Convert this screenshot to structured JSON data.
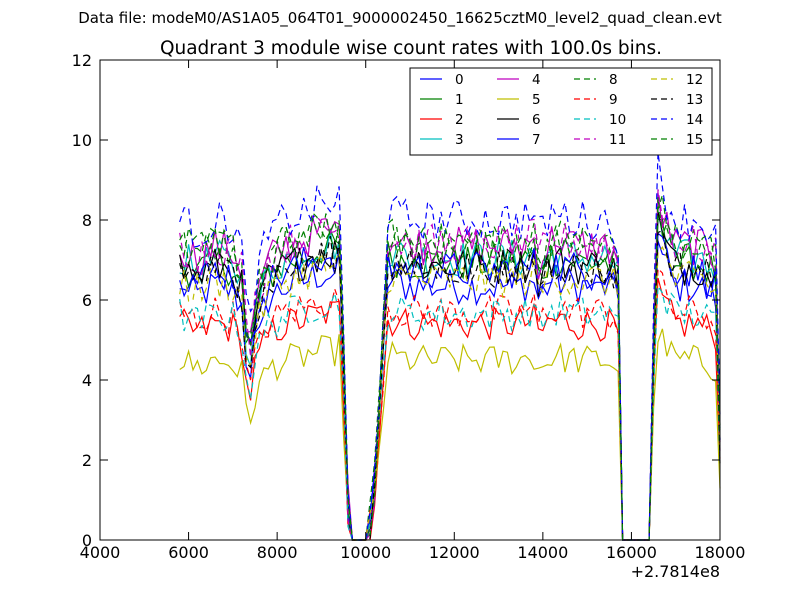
{
  "figure": {
    "suptitle": "Data file: modeM0/AS1A05_064T01_9000002450_16625cztM0_level2_quad_clean.evt"
  },
  "chart_data": {
    "type": "line",
    "title": "Quadrant 3 module wise count rates with 100.0s bins.",
    "xlabel": "",
    "ylabel": "",
    "x_offset_label": "+2.7814e8",
    "xlim": [
      4000,
      18000
    ],
    "ylim": [
      0,
      12
    ],
    "xticks": [
      "4000",
      "6000",
      "8000",
      "10000",
      "12000",
      "14000",
      "16000",
      "18000"
    ],
    "yticks": [
      "0",
      "2",
      "4",
      "6",
      "8",
      "10",
      "12"
    ],
    "grid": false,
    "legend_position": "top-right",
    "legend_columns": 4,
    "series": [
      {
        "name": "0",
        "color": "#0000ff",
        "dash": "solid"
      },
      {
        "name": "1",
        "color": "#008000",
        "dash": "solid"
      },
      {
        "name": "2",
        "color": "#ff0000",
        "dash": "solid"
      },
      {
        "name": "3",
        "color": "#00bfbf",
        "dash": "solid"
      },
      {
        "name": "4",
        "color": "#bf00bf",
        "dash": "solid"
      },
      {
        "name": "5",
        "color": "#bfbf00",
        "dash": "solid"
      },
      {
        "name": "6",
        "color": "#000000",
        "dash": "solid"
      },
      {
        "name": "7",
        "color": "#0000ff",
        "dash": "solid"
      },
      {
        "name": "8",
        "color": "#008000",
        "dash": "dashed"
      },
      {
        "name": "9",
        "color": "#ff0000",
        "dash": "dashed"
      },
      {
        "name": "10",
        "color": "#00bfbf",
        "dash": "dashed"
      },
      {
        "name": "11",
        "color": "#bf00bf",
        "dash": "dashed"
      },
      {
        "name": "12",
        "color": "#bfbf00",
        "dash": "dashed"
      },
      {
        "name": "13",
        "color": "#000000",
        "dash": "dashed"
      },
      {
        "name": "14",
        "color": "#0000ff",
        "dash": "dashed"
      },
      {
        "name": "15",
        "color": "#008000",
        "dash": "dashed"
      }
    ],
    "profile": {
      "x": [
        5800,
        6200,
        6600,
        7000,
        7200,
        7350,
        7500,
        7800,
        8200,
        8600,
        9000,
        9300,
        9450,
        9550,
        9700,
        9900,
        10050,
        10200,
        10500,
        11000,
        12000,
        13000,
        13500,
        13800,
        13900,
        14200,
        14800,
        15400,
        15600,
        15700,
        15800,
        16000,
        16400,
        16450,
        16550,
        16700,
        17000,
        17500,
        17950,
        18000
      ],
      "y": [
        1,
        0.96,
        1,
        0.98,
        0.92,
        0.62,
        0.8,
        0.95,
        1,
        1.02,
        1.05,
        1.05,
        1.07,
        0.2,
        0,
        0,
        0,
        0.2,
        1.02,
        1,
        1,
        1,
        1,
        1.02,
        0.95,
        1.02,
        1,
        1,
        0.98,
        0.95,
        0,
        0,
        0,
        0.15,
        1.2,
        1.1,
        1,
        1,
        0.95,
        0.35
      ]
    },
    "base_levels": [
      6.35,
      6.95,
      5.4,
      7.05,
      7.35,
      4.5,
      6.85,
      6.75,
      7.45,
      5.7,
      5.65,
      7.4,
      6.5,
      6.8,
      8.0,
      7.35
    ],
    "x_start": 5800,
    "x_end": 18000,
    "bin_width": 100
  }
}
